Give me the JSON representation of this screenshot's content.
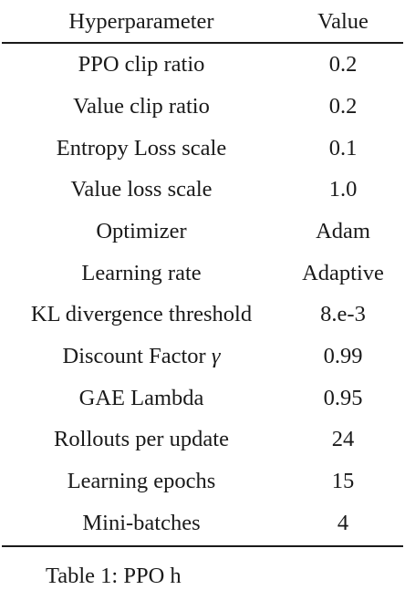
{
  "table": {
    "headers": {
      "param": "Hyperparameter",
      "value": "Value"
    },
    "rows": [
      {
        "param": "PPO clip ratio",
        "value": "0.2"
      },
      {
        "param": "Value clip ratio",
        "value": "0.2"
      },
      {
        "param": "Entropy Loss scale",
        "value": "0.1"
      },
      {
        "param": "Value loss scale",
        "value": "1.0"
      },
      {
        "param": "Optimizer",
        "value": "Adam"
      },
      {
        "param": "Learning rate",
        "value": "Adaptive"
      },
      {
        "param": "KL divergence threshold",
        "value": "8.e-3"
      },
      {
        "param": "Discount Factor ",
        "symbol": "γ",
        "value": "0.99"
      },
      {
        "param": "GAE Lambda",
        "value": "0.95"
      },
      {
        "param": "Rollouts per update",
        "value": "24"
      },
      {
        "param": "Learning epochs",
        "value": "15"
      },
      {
        "param": "Mini-batches",
        "value": "4"
      }
    ]
  },
  "caption": "Table 1: PPO h"
}
